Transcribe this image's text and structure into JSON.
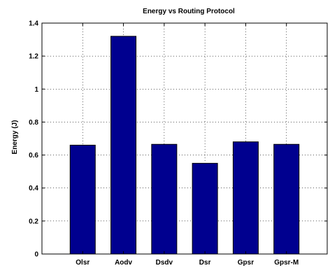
{
  "chart_data": {
    "type": "bar",
    "title": "Energy vs Routing Protocol",
    "xlabel": "",
    "ylabel": "Energy (J)",
    "categories": [
      "Olsr",
      "Aodv",
      "Dsdv",
      "Dsr",
      "Gpsr",
      "Gpsr-M"
    ],
    "values": [
      0.66,
      1.32,
      0.665,
      0.55,
      0.68,
      0.665
    ],
    "ylim": [
      0,
      1.4
    ],
    "yticks": [
      0,
      0.2,
      0.4,
      0.6,
      0.8,
      1,
      1.2,
      1.4
    ],
    "ytick_labels": [
      "0",
      "0.2",
      "0.4",
      "0.6",
      "0.8",
      "1",
      "1.2",
      "1.4"
    ],
    "grid": true,
    "bar_color": "#00008f",
    "bar_edge_color": "#000000"
  }
}
